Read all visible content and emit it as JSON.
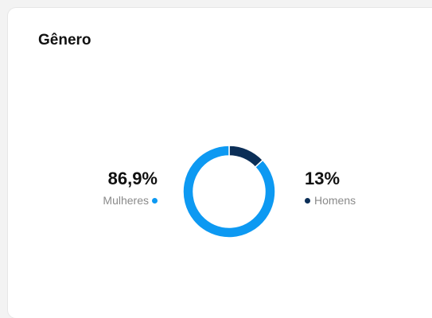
{
  "card": {
    "title": "Gênero"
  },
  "colors": {
    "mulheres": "#0d99f2",
    "homens": "#0b2e57",
    "separator": "#ffffff"
  },
  "chart_data": {
    "type": "pie",
    "variant": "donut",
    "title": "Gênero",
    "categories": [
      "Mulheres",
      "Homens"
    ],
    "values": [
      86.9,
      13
    ],
    "value_labels": [
      "86,9%",
      "13%"
    ],
    "legend": "sides"
  }
}
